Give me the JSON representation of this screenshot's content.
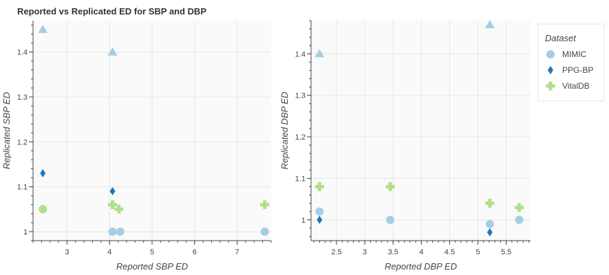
{
  "colors": {
    "MIMIC": "#a6cee3",
    "PPG-BP": "#1f78b4",
    "VitalDB": "#b2df8a",
    "plot_bg": "#fafafa",
    "grid": "#e5e5e5",
    "axis": "#444444"
  },
  "legend": {
    "title": "Dataset",
    "placement": "right",
    "items": [
      {
        "name": "MIMIC",
        "marker": "circle"
      },
      {
        "name": "PPG-BP",
        "marker": "diamond"
      },
      {
        "name": "VitalDB",
        "marker": "cross"
      }
    ]
  },
  "chart_data": [
    {
      "type": "scatter",
      "title": "Reported vs Replicated ED for SBP and DBP",
      "xlabel": "Reported SBP ED",
      "ylabel": "Replicated SBP ED",
      "xlim": [
        2.2,
        7.8
      ],
      "ylim": [
        0.98,
        1.47
      ],
      "xticks": [
        3,
        4,
        5,
        6,
        7
      ],
      "xtick_labels": [
        "3",
        "4",
        "5",
        "6",
        "7"
      ],
      "yticks": [
        1.0,
        1.1,
        1.2,
        1.3,
        1.4
      ],
      "ytick_labels": [
        "1",
        "1.1",
        "1.2",
        "1.3",
        "1.4"
      ],
      "x_minor_step": 0.2,
      "y_minor_step": 0.02,
      "grid": true,
      "series": [
        {
          "name": "MIMIC",
          "marker": "circle",
          "points": [
            [
              2.43,
              1.05
            ],
            [
              4.07,
              1.0
            ],
            [
              4.25,
              1.0
            ],
            [
              7.65,
              1.0
            ]
          ]
        },
        {
          "name": "MIMIC",
          "marker": "triangle",
          "points": [
            [
              2.43,
              1.45
            ],
            [
              4.07,
              1.4
            ]
          ]
        },
        {
          "name": "PPG-BP",
          "marker": "diamond",
          "points": [
            [
              2.43,
              1.13
            ],
            [
              4.07,
              1.09
            ]
          ]
        },
        {
          "name": "VitalDB",
          "marker": "circle",
          "points": [
            [
              2.43,
              1.05
            ]
          ]
        },
        {
          "name": "VitalDB",
          "marker": "cross",
          "points": [
            [
              4.07,
              1.06
            ],
            [
              4.22,
              1.05
            ],
            [
              7.65,
              1.06
            ]
          ]
        }
      ]
    },
    {
      "type": "scatter",
      "title": "",
      "xlabel": "Reported DBP ED",
      "ylabel": "Replicated DBP ED",
      "xlim": [
        2.05,
        5.93
      ],
      "ylim": [
        0.95,
        1.48
      ],
      "xticks": [
        2.5,
        3.0,
        3.5,
        4.0,
        4.5,
        5.0,
        5.5
      ],
      "xtick_labels": [
        "2.5",
        "3",
        "3.5",
        "4",
        "4.5",
        "5",
        "5.5"
      ],
      "yticks": [
        1.0,
        1.1,
        1.2,
        1.3,
        1.4
      ],
      "ytick_labels": [
        "1",
        "1.1",
        "1.2",
        "1.3",
        "1.4"
      ],
      "x_minor_step": 0.1,
      "y_minor_step": 0.02,
      "grid": true,
      "series": [
        {
          "name": "MIMIC",
          "marker": "circle",
          "points": [
            [
              2.2,
              1.02
            ],
            [
              3.45,
              1.0
            ],
            [
              5.21,
              0.99
            ],
            [
              5.73,
              1.0
            ]
          ]
        },
        {
          "name": "MIMIC",
          "marker": "triangle",
          "points": [
            [
              2.2,
              1.4
            ],
            [
              5.21,
              1.47
            ]
          ]
        },
        {
          "name": "PPG-BP",
          "marker": "diamond",
          "points": [
            [
              2.2,
              1.0
            ],
            [
              5.21,
              0.97
            ]
          ]
        },
        {
          "name": "VitalDB",
          "marker": "cross",
          "points": [
            [
              2.2,
              1.08
            ],
            [
              3.45,
              1.08
            ],
            [
              5.21,
              1.04
            ],
            [
              5.73,
              1.03
            ]
          ]
        }
      ]
    }
  ]
}
